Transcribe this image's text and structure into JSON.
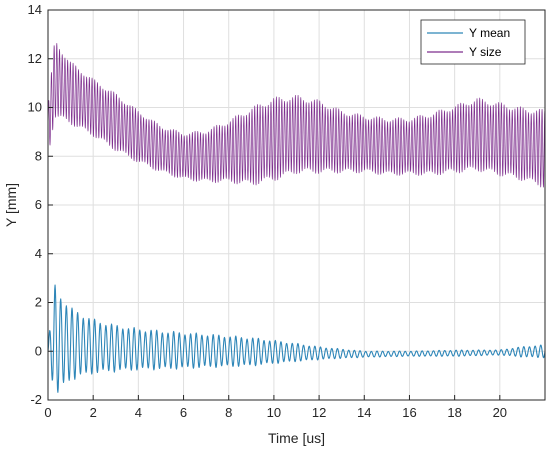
{
  "chart_data": {
    "type": "line",
    "title": "",
    "xlabel": "Time [us]",
    "ylabel": "Y [mm]",
    "xlim": [
      0,
      22
    ],
    "ylim": [
      -2,
      14
    ],
    "xticks": [
      0,
      2,
      4,
      6,
      8,
      10,
      12,
      14,
      16,
      18,
      20
    ],
    "yticks": [
      -2,
      0,
      2,
      4,
      6,
      8,
      10,
      12,
      14
    ],
    "xtick_labels": [
      "0",
      "2",
      "4",
      "6",
      "8",
      "10",
      "12",
      "14",
      "16",
      "18",
      "20"
    ],
    "ytick_labels": [
      "-2",
      "0",
      "2",
      "4",
      "6",
      "8",
      "10",
      "12",
      "14"
    ],
    "grid": true,
    "legend_position": "top-right",
    "series": [
      {
        "name": "Y mean",
        "color": "#2e86b8",
        "center_x": [
          0,
          0.2,
          1,
          2,
          3,
          4,
          5,
          6,
          7,
          8,
          9,
          10,
          11,
          12,
          13,
          14,
          16,
          18,
          20,
          22
        ],
        "center_y": [
          0,
          0.4,
          0.3,
          0.2,
          0.12,
          0.08,
          0.05,
          0.03,
          0.02,
          0.0,
          -0.02,
          -0.03,
          -0.05,
          -0.08,
          -0.1,
          -0.12,
          -0.1,
          -0.08,
          -0.05,
          0.0
        ],
        "envelope_x": [
          0,
          0.3,
          1,
          2,
          3,
          4,
          5,
          6,
          7,
          8,
          9,
          10,
          11,
          12,
          13,
          14,
          16,
          18,
          20,
          21,
          22
        ],
        "envelope_amp": [
          0.2,
          2.2,
          1.4,
          1.05,
          0.9,
          0.8,
          0.75,
          0.7,
          0.65,
          0.6,
          0.55,
          0.45,
          0.35,
          0.25,
          0.18,
          0.12,
          0.1,
          0.12,
          0.1,
          0.2,
          0.25
        ],
        "period": 0.25
      },
      {
        "name": "Y size",
        "color": "#7e2f8e",
        "center_x": [
          0,
          0.3,
          1,
          2,
          3,
          4,
          5,
          6,
          7,
          8,
          9,
          10,
          11,
          12,
          13,
          14,
          15,
          16,
          17,
          18,
          19,
          20,
          21,
          22
        ],
        "center_y": [
          9.0,
          11.2,
          10.6,
          10.0,
          9.4,
          8.8,
          8.3,
          8.0,
          8.0,
          8.2,
          8.4,
          8.7,
          8.9,
          8.8,
          8.6,
          8.5,
          8.4,
          8.4,
          8.5,
          8.7,
          8.9,
          8.7,
          8.5,
          8.3
        ],
        "envelope_x": [
          0,
          0.3,
          1,
          2,
          3,
          4,
          5,
          6,
          7,
          8,
          9,
          10,
          11,
          12,
          13,
          14,
          15,
          16,
          17,
          18,
          19,
          20,
          21,
          22
        ],
        "envelope_amp": [
          1.0,
          1.5,
          1.2,
          1.1,
          1.1,
          1.0,
          0.9,
          0.9,
          1.0,
          1.2,
          1.5,
          1.6,
          1.5,
          1.4,
          1.2,
          1.1,
          1.1,
          1.1,
          1.2,
          1.3,
          1.4,
          1.4,
          1.4,
          1.5
        ],
        "period": 0.12
      }
    ]
  }
}
